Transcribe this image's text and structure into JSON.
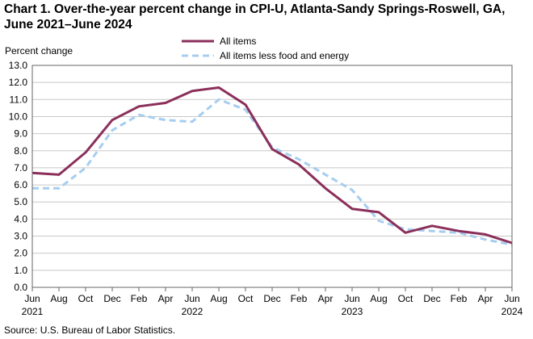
{
  "chart_data": {
    "type": "line",
    "title": "Chart 1. Over-the-year percent change in CPI-U, Atlanta-Sandy Springs-Roswell, GA, June 2021–June 2024",
    "ylabel": "Percent change",
    "xlabel": "",
    "ylim": [
      0,
      13
    ],
    "yticks": [
      "0.0",
      "1.0",
      "2.0",
      "3.0",
      "4.0",
      "5.0",
      "6.0",
      "7.0",
      "8.0",
      "9.0",
      "10.0",
      "11.0",
      "12.0",
      "13.0"
    ],
    "x": [
      "Jun 2021",
      "Aug 2021",
      "Oct 2021",
      "Dec 2021",
      "Feb 2022",
      "Apr 2022",
      "Jun 2022",
      "Aug 2022",
      "Oct 2022",
      "Dec 2022",
      "Feb 2023",
      "Apr 2023",
      "Jun 2023",
      "Aug 2023",
      "Oct 2023",
      "Dec 2023",
      "Feb 2024",
      "Apr 2024",
      "Jun 2024"
    ],
    "xtick_months": [
      "Jun",
      "Aug",
      "Oct",
      "Dec",
      "Feb",
      "Apr",
      "Jun",
      "Aug",
      "Oct",
      "Dec",
      "Feb",
      "Apr",
      "Jun",
      "Aug",
      "Oct",
      "Dec",
      "Feb",
      "Apr",
      "Jun"
    ],
    "xtick_years": [
      {
        "index": 0,
        "label": "2021"
      },
      {
        "index": 6,
        "label": "2022"
      },
      {
        "index": 12,
        "label": "2023"
      },
      {
        "index": 18,
        "label": "2024"
      }
    ],
    "series": [
      {
        "name": "All items",
        "color": "#8b2f5a",
        "style": "solid",
        "values": [
          6.7,
          6.6,
          7.9,
          9.8,
          10.6,
          10.8,
          11.5,
          11.7,
          10.7,
          8.1,
          7.2,
          5.8,
          4.6,
          4.4,
          3.2,
          3.6,
          3.3,
          3.1,
          2.6
        ]
      },
      {
        "name": "All items less food and energy",
        "color": "#a6cdf0",
        "style": "dashed",
        "values": [
          5.8,
          5.8,
          7.0,
          9.2,
          10.1,
          9.8,
          9.7,
          11.0,
          10.4,
          8.2,
          7.5,
          6.6,
          5.7,
          3.9,
          3.4,
          3.3,
          3.2,
          2.8,
          2.5
        ]
      }
    ],
    "source": "Source: U.S. Bureau of Labor Statistics."
  }
}
